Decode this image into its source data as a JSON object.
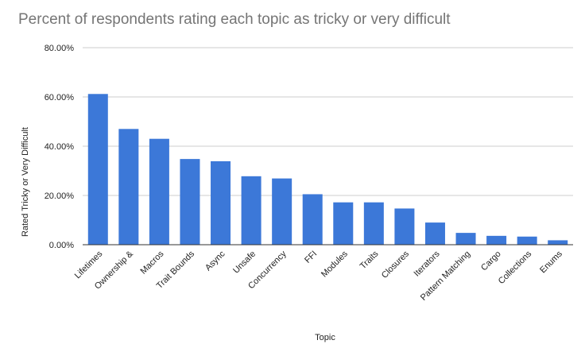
{
  "chart_data": {
    "type": "bar",
    "title": "Percent of respondents rating each topic as tricky or very difficult",
    "xlabel": "Topic",
    "ylabel": "Rated Tricky or Very Difficult",
    "ylim": [
      0,
      80
    ],
    "yticks": [
      "0.00%",
      "20.00%",
      "40.00%",
      "60.00%",
      "80.00%"
    ],
    "grid": true,
    "legend": "none",
    "bar_color": "#3c78d8",
    "categories": [
      "Lifetimes",
      "Ownership &",
      "Macros",
      "Trait Bounds",
      "Async",
      "Unsafe",
      "Concurrency",
      "FFI",
      "Modules",
      "Traits",
      "Closures",
      "Iterators",
      "Pattern Matching",
      "Cargo",
      "Collections",
      "Enums"
    ],
    "values": [
      61.2,
      47.0,
      43.0,
      34.8,
      33.9,
      27.8,
      26.9,
      20.5,
      17.2,
      17.2,
      14.7,
      9.0,
      4.8,
      3.6,
      3.3,
      1.8
    ]
  }
}
